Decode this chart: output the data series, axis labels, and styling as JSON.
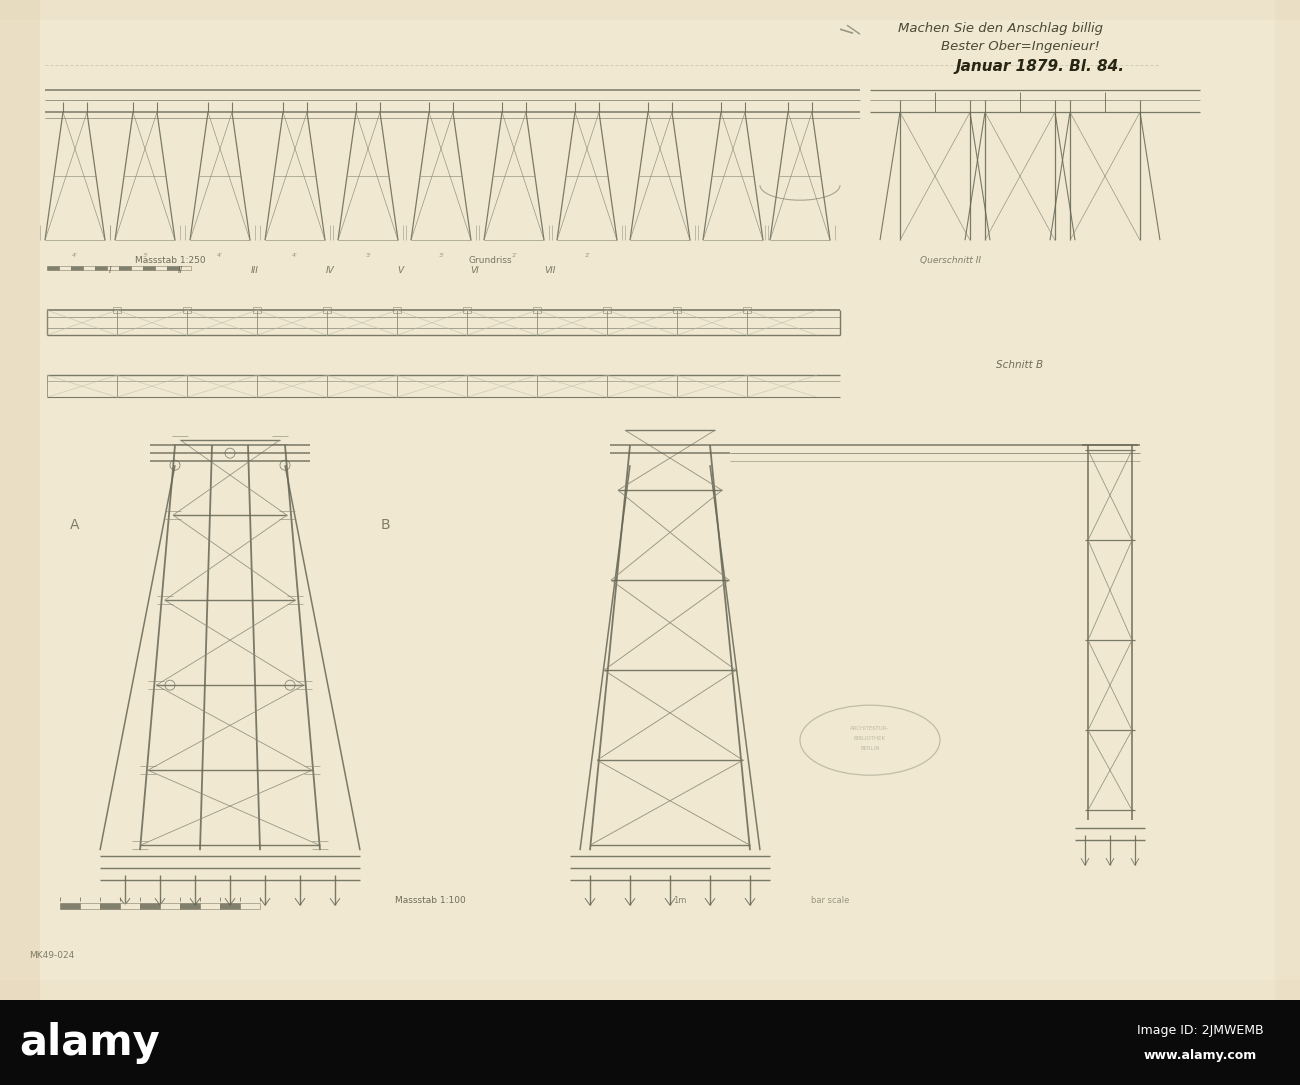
{
  "paper_color": "#f0e8d0",
  "paper_light": "#f5eed8",
  "border_shadow": "#d4b896",
  "drawing_color": "#999988",
  "dark_drawing_color": "#666655",
  "med_drawing_color": "#888877",
  "light_drawing_color": "#bbbbaa",
  "text_color": "#444433",
  "dark_text_color": "#222211",
  "black_bar_color": "#0a0a0a",
  "stamp_color": "#999988",
  "title_line1": "Machen Sie den Anschlag billig",
  "title_line2": "Bester Ober=Ingenieur!",
  "title_line3": "Januar 1879. Bl. 84.",
  "bottom_label": "alamy",
  "image_id_label": "Image ID: 2JMWEMB",
  "website_label": "www.alamy.com",
  "drawing_id": "MK49-024",
  "scale_label_1": "Massstab 1:250",
  "scale_label_2": "Massstab 1:100",
  "section_b_label": "Schnitt B",
  "figsize": [
    13.0,
    10.85
  ],
  "dpi": 100
}
